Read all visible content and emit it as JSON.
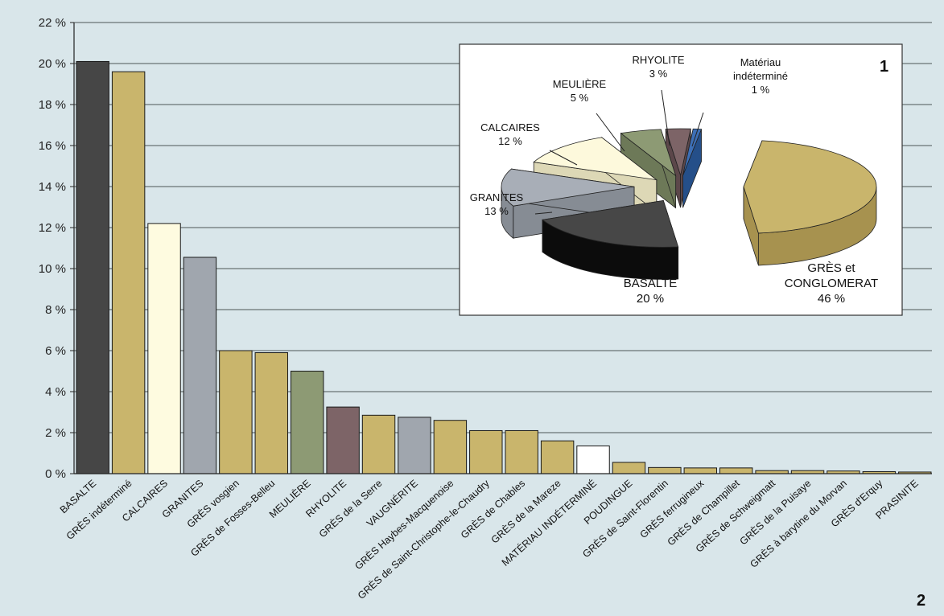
{
  "figure_labels": {
    "bar_figure": "2",
    "pie_figure": "1"
  },
  "chart_data": [
    {
      "type": "bar",
      "categories": [
        "BASALTE",
        "GRÈS indéterminé",
        "CALCAIRES",
        "GRANITES",
        "GRÈS vosgien",
        "GRÈS de Fosses-Belleu",
        "MEULIÈRE",
        "RHYOLITE",
        "GRÈS de la Serre",
        "VAUGNÉRITE",
        "GRÈS Haybes-Macquenoise",
        "GRÈS de Saint-Christophe-le-Chaudry",
        "GRÈS de Chables",
        "GRÈS de la Mareze",
        "MATÉRIAU INDÉTERMINÉ",
        "POUDINGUE",
        "GRÈS de Saint-Florentin",
        "GRÈS ferrugineux",
        "GRÈS de Champillet",
        "GRÈS de Schweigmatt",
        "GRÈS de la Puisaye",
        "GRÈS à barytine du Morvan",
        "GRÈS d'Erquy",
        "PRASINITE"
      ],
      "values": [
        20.1,
        19.6,
        12.2,
        10.55,
        6.0,
        5.9,
        5.0,
        3.25,
        2.85,
        2.75,
        2.6,
        2.1,
        2.1,
        1.6,
        1.35,
        0.55,
        0.3,
        0.28,
        0.28,
        0.15,
        0.15,
        0.13,
        0.1,
        0.08
      ],
      "colors": [
        "#464646",
        "#c9b56c",
        "#fefbe0",
        "#a0a6ae",
        "#c9b56c",
        "#c9b56c",
        "#8d9a74",
        "#7d6467",
        "#c9b56c",
        "#a0a6ae",
        "#c9b56c",
        "#c9b56c",
        "#c9b56c",
        "#c9b56c",
        "#ffffff",
        "#c9b56c",
        "#c9b56c",
        "#c9b56c",
        "#c9b56c",
        "#c9b56c",
        "#c9b56c",
        "#c9b56c",
        "#c9b56c",
        "#c9b56c"
      ],
      "ylim": [
        0,
        22
      ],
      "yticks": [
        0,
        2,
        4,
        6,
        8,
        10,
        12,
        14,
        16,
        18,
        20,
        22
      ],
      "ytick_labels": [
        "0 %",
        "2 %",
        "4 %",
        "6 %",
        "8 %",
        "10 %",
        "12 %",
        "14 %",
        "16 %",
        "18 %",
        "20 %",
        "22 %"
      ],
      "grid": true,
      "title": "",
      "xlabel": "",
      "ylabel": ""
    },
    {
      "type": "pie",
      "style": "3d-exploded",
      "slices": [
        {
          "label_lines": [
            "GRÈS et",
            "CONGLOMERAT"
          ],
          "pct_label": "46 %",
          "value": 46,
          "color": "#c9b56c",
          "side_color": "#a7924f"
        },
        {
          "label_lines": [
            "BASALTE"
          ],
          "pct_label": "20 %",
          "value": 20,
          "color": "#474747",
          "side_color": "#0c0c0c"
        },
        {
          "label_lines": [
            "GRANITES"
          ],
          "pct_label": "13 %",
          "value": 13,
          "color": "#a8aeb7",
          "side_color": "#868c94"
        },
        {
          "label_lines": [
            "CALCAIRES"
          ],
          "pct_label": "12 %",
          "value": 12,
          "color": "#fdf9dc",
          "side_color": "#ddd8b6"
        },
        {
          "label_lines": [
            "MEULIÈRE"
          ],
          "pct_label": "5 %",
          "value": 5,
          "color": "#8d9a74",
          "side_color": "#6d7958"
        },
        {
          "label_lines": [
            "RHYOLITE"
          ],
          "pct_label": "3 %",
          "value": 3,
          "color": "#7d6467",
          "side_color": "#5c474a"
        },
        {
          "label_lines": [
            "Matériau",
            "indéterminé"
          ],
          "pct_label": "1 %",
          "value": 1,
          "color": "#3d6fb6",
          "side_color": "#254f89"
        }
      ]
    }
  ]
}
